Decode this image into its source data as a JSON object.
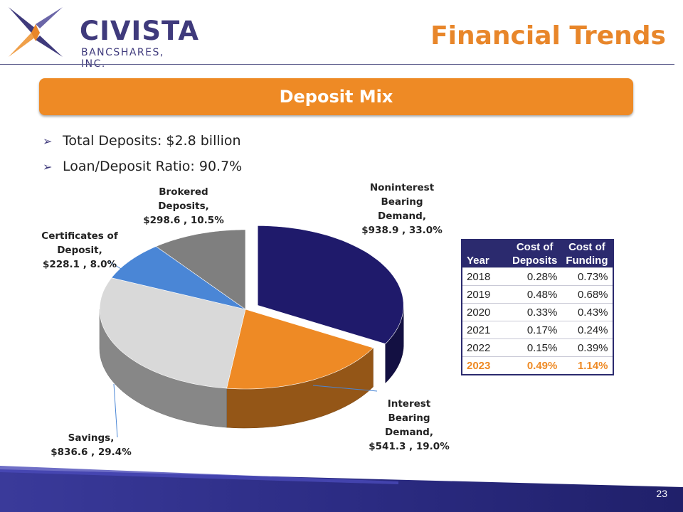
{
  "header": {
    "company": "CIVISTA",
    "company_sub": "BANCSHARES, INC.",
    "page_title": "Financial Trends"
  },
  "banner": {
    "label": "Deposit Mix"
  },
  "bullets": [
    "Total Deposits: $2.8 billion",
    "Loan/Deposit Ratio: 90.7%"
  ],
  "chart_data": {
    "type": "pie",
    "slices": [
      {
        "label_lines": [
          "Noninterest",
          "Bearing",
          "Demand,",
          "$938.9 , 33.0%"
        ],
        "value": 938.9,
        "percent": 33.0,
        "color": "#1f1a6b"
      },
      {
        "label_lines": [
          "Interest",
          "Bearing",
          "Demand,",
          "$541.3 , 19.0%"
        ],
        "value": 541.3,
        "percent": 19.0,
        "color": "#ee8a25"
      },
      {
        "label_lines": [
          "Savings,",
          "$836.6 , 29.4%"
        ],
        "value": 836.6,
        "percent": 29.4,
        "color": "#d9d9d9"
      },
      {
        "label_lines": [
          "Certificates of",
          "Deposit,",
          "$228.1 , 8.0%"
        ],
        "value": 228.1,
        "percent": 8.0,
        "color": "#4a86d6"
      },
      {
        "label_lines": [
          "Brokered",
          "Deposits,",
          "$298.6 , 10.5%"
        ],
        "value": 298.6,
        "percent": 10.5,
        "color": "#7f7f7f"
      }
    ]
  },
  "cost_table": {
    "headers": {
      "year": "Year",
      "deposits_top": "Cost of",
      "deposits_bottom": "Deposits",
      "funding_top": "Cost of",
      "funding_bottom": "Funding"
    },
    "rows": [
      [
        "2018",
        "0.28%",
        "0.73%"
      ],
      [
        "2019",
        "0.48%",
        "0.68%"
      ],
      [
        "2020",
        "0.33%",
        "0.43%"
      ],
      [
        "2021",
        "0.17%",
        "0.24%"
      ],
      [
        "2022",
        "0.15%",
        "0.39%"
      ],
      [
        "2023",
        "0.49%",
        "1.14%"
      ]
    ]
  },
  "footer": {
    "page_number": "23"
  },
  "colors": {
    "brand_navy": "#3f3a7c",
    "brand_orange": "#ee8a25",
    "table_header": "#2b2a6e"
  }
}
